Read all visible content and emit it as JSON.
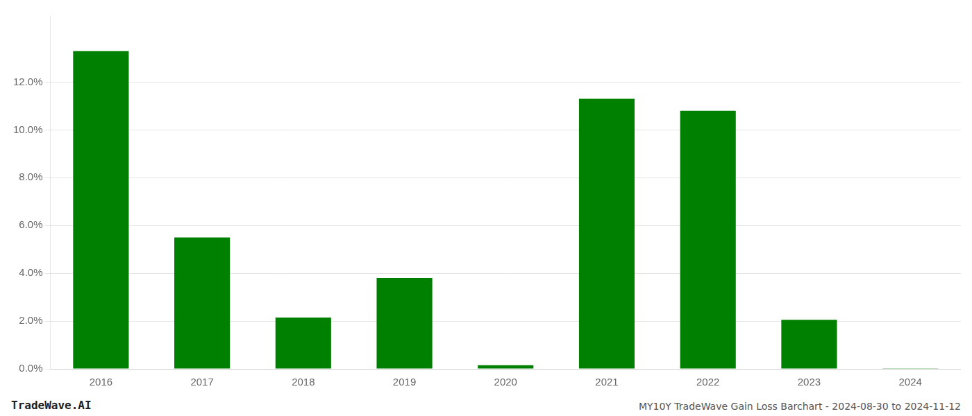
{
  "chart_data": {
    "type": "bar",
    "categories": [
      "2016",
      "2017",
      "2018",
      "2019",
      "2020",
      "2021",
      "2022",
      "2023",
      "2024"
    ],
    "values": [
      0.133,
      0.055,
      0.0215,
      0.038,
      0.0015,
      0.113,
      0.108,
      0.0205,
      0.0002
    ],
    "color": "#008000",
    "ylim": [
      0,
      0.148
    ],
    "yticks": [
      {
        "value": 0.0,
        "label": "0.0%"
      },
      {
        "value": 0.02,
        "label": "2.0%"
      },
      {
        "value": 0.04,
        "label": "4.0%"
      },
      {
        "value": 0.06,
        "label": "6.0%"
      },
      {
        "value": 0.08,
        "label": "8.0%"
      },
      {
        "value": 0.1,
        "label": "10.0%"
      },
      {
        "value": 0.12,
        "label": "12.0%"
      }
    ],
    "grid": true,
    "annotations": [
      "TradeWave.AI",
      "MY10Y TradeWave Gain Loss Barchart - 2024-08-30 to 2024-11-12"
    ]
  }
}
